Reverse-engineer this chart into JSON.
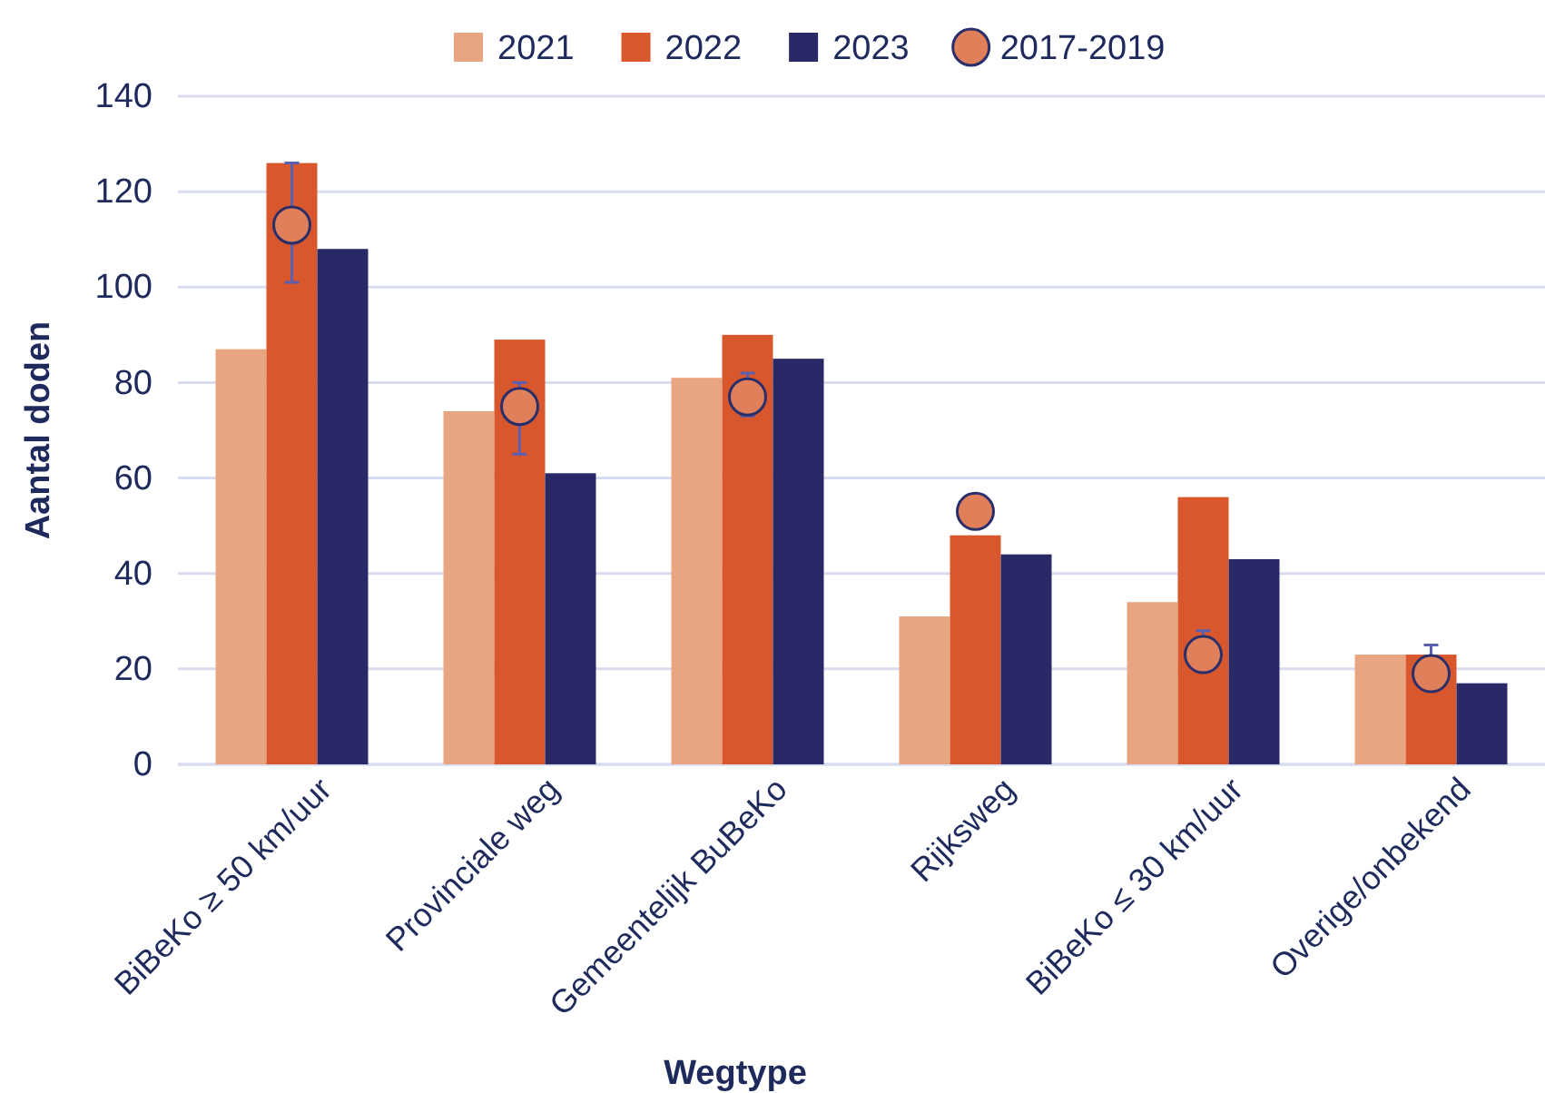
{
  "chart_data": {
    "type": "bar",
    "xlabel": "Wegtype",
    "ylabel": "Aantal doden",
    "categories": [
      "BiBeKo ≥ 50 km/uur",
      "Provinciale weg",
      "Gemeentelijk BuBeKo",
      "Rijksweg",
      "BiBeKo ≤ 30 km/uur",
      "Overige/onbekend"
    ],
    "series": [
      {
        "name": "2021",
        "color": "#e8a582",
        "values": [
          87,
          74,
          81,
          31,
          34,
          23
        ]
      },
      {
        "name": "2022",
        "color": "#d9572c",
        "values": [
          126,
          89,
          90,
          48,
          56,
          23
        ]
      },
      {
        "name": "2023",
        "color": "#282966",
        "values": [
          108,
          61,
          85,
          44,
          43,
          17
        ]
      },
      {
        "name": "2017-2019",
        "type": "scatter",
        "marker": "circle",
        "color": "#e0805a",
        "values": [
          113,
          75,
          77,
          53,
          23,
          19
        ],
        "errors": [
          [
            101,
            126
          ],
          [
            65,
            80
          ],
          [
            73,
            82
          ],
          null,
          [
            20,
            28
          ],
          [
            16,
            25
          ]
        ]
      }
    ],
    "ylim": [
      0,
      140
    ],
    "yticks": [
      0,
      20,
      40,
      60,
      80,
      100,
      120,
      140
    ],
    "grid": "y",
    "legend": "top"
  }
}
